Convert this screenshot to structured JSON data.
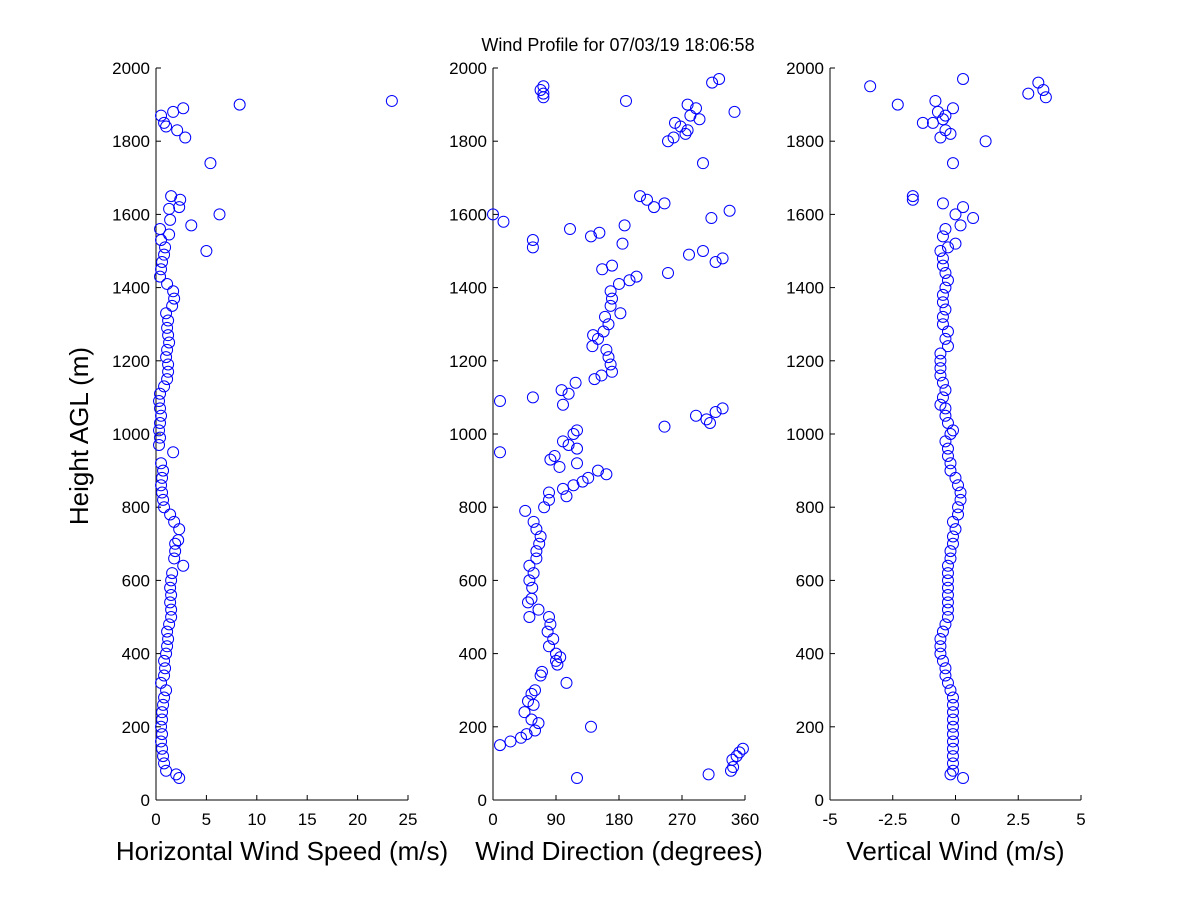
{
  "title": "Wind Profile for  07/03/19 18:06:58",
  "ylabel": "Height AGL (m)",
  "colors": {
    "marker": "#0000ff",
    "axis": "#000000",
    "background": "#ffffff"
  },
  "chart_data": [
    {
      "type": "scatter",
      "xlabel": "Horizontal Wind Speed (m/s)",
      "xlim": [
        0,
        25
      ],
      "ylim": [
        0,
        2000
      ],
      "xticks": [
        0,
        5,
        10,
        15,
        20,
        25
      ],
      "xtick_labels": [
        "0",
        "5",
        "10",
        "15",
        "20",
        "25"
      ],
      "yticks": [
        0,
        200,
        400,
        600,
        800,
        1000,
        1200,
        1400,
        1600,
        1800,
        2000
      ],
      "ytick_labels": [
        "0",
        "200",
        "400",
        "600",
        "800",
        "1000",
        "1200",
        "1400",
        "1600",
        "1800",
        "2000"
      ],
      "points": [
        [
          2.3,
          60
        ],
        [
          2.0,
          70
        ],
        [
          1.0,
          80
        ],
        [
          0.8,
          100
        ],
        [
          0.7,
          120
        ],
        [
          0.6,
          140
        ],
        [
          0.5,
          160
        ],
        [
          0.6,
          180
        ],
        [
          0.5,
          200
        ],
        [
          0.6,
          220
        ],
        [
          0.6,
          240
        ],
        [
          0.7,
          260
        ],
        [
          0.8,
          280
        ],
        [
          1.0,
          300
        ],
        [
          0.5,
          320
        ],
        [
          0.8,
          340
        ],
        [
          0.9,
          360
        ],
        [
          0.8,
          380
        ],
        [
          1.0,
          400
        ],
        [
          1.1,
          420
        ],
        [
          1.2,
          440
        ],
        [
          1.1,
          460
        ],
        [
          1.3,
          480
        ],
        [
          1.5,
          500
        ],
        [
          1.5,
          520
        ],
        [
          1.4,
          540
        ],
        [
          1.5,
          560
        ],
        [
          1.4,
          580
        ],
        [
          1.5,
          600
        ],
        [
          1.6,
          620
        ],
        [
          2.7,
          640
        ],
        [
          1.8,
          660
        ],
        [
          1.9,
          680
        ],
        [
          1.9,
          700
        ],
        [
          2.2,
          710
        ],
        [
          2.3,
          740
        ],
        [
          1.8,
          760
        ],
        [
          1.4,
          780
        ],
        [
          0.8,
          800
        ],
        [
          0.7,
          820
        ],
        [
          0.6,
          840
        ],
        [
          0.5,
          860
        ],
        [
          0.6,
          880
        ],
        [
          0.7,
          900
        ],
        [
          0.5,
          920
        ],
        [
          1.7,
          950
        ],
        [
          0.3,
          970
        ],
        [
          0.4,
          990
        ],
        [
          0.3,
          1010
        ],
        [
          0.4,
          1030
        ],
        [
          0.5,
          1050
        ],
        [
          0.4,
          1070
        ],
        [
          0.3,
          1090
        ],
        [
          0.4,
          1110
        ],
        [
          0.8,
          1130
        ],
        [
          1.1,
          1150
        ],
        [
          1.2,
          1170
        ],
        [
          1.2,
          1190
        ],
        [
          1.0,
          1210
        ],
        [
          1.1,
          1230
        ],
        [
          1.3,
          1250
        ],
        [
          1.2,
          1270
        ],
        [
          1.1,
          1290
        ],
        [
          1.2,
          1310
        ],
        [
          1.0,
          1330
        ],
        [
          1.6,
          1350
        ],
        [
          1.8,
          1370
        ],
        [
          1.7,
          1390
        ],
        [
          1.1,
          1410
        ],
        [
          0.4,
          1430
        ],
        [
          0.5,
          1450
        ],
        [
          0.6,
          1470
        ],
        [
          0.8,
          1490
        ],
        [
          5.0,
          1500
        ],
        [
          0.9,
          1510
        ],
        [
          0.5,
          1530
        ],
        [
          1.3,
          1545
        ],
        [
          0.4,
          1560
        ],
        [
          3.5,
          1570
        ],
        [
          1.4,
          1585
        ],
        [
          6.3,
          1600
        ],
        [
          1.3,
          1615
        ],
        [
          2.3,
          1620
        ],
        [
          2.4,
          1640
        ],
        [
          1.5,
          1650
        ],
        [
          5.4,
          1740
        ],
        [
          2.9,
          1810
        ],
        [
          2.1,
          1830
        ],
        [
          1.0,
          1840
        ],
        [
          0.8,
          1850
        ],
        [
          0.5,
          1870
        ],
        [
          1.7,
          1880
        ],
        [
          2.7,
          1890
        ],
        [
          8.3,
          1900
        ],
        [
          23.4,
          1910
        ]
      ]
    },
    {
      "type": "scatter",
      "xlabel": "Wind Direction (degrees)",
      "xlim": [
        0,
        360
      ],
      "ylim": [
        0,
        2000
      ],
      "xticks": [
        0,
        90,
        180,
        270,
        360
      ],
      "xtick_labels": [
        "0",
        "90",
        "180",
        "270",
        "360"
      ],
      "yticks": [
        0,
        200,
        400,
        600,
        800,
        1000,
        1200,
        1400,
        1600,
        1800,
        2000
      ],
      "ytick_labels": [
        "0",
        "200",
        "400",
        "600",
        "800",
        "1000",
        "1200",
        "1400",
        "1600",
        "1800",
        "2000"
      ],
      "points": [
        [
          120,
          60
        ],
        [
          308,
          70
        ],
        [
          340,
          80
        ],
        [
          343,
          90
        ],
        [
          342,
          110
        ],
        [
          348,
          120
        ],
        [
          352,
          130
        ],
        [
          357,
          140
        ],
        [
          10,
          150
        ],
        [
          25,
          160
        ],
        [
          40,
          170
        ],
        [
          48,
          180
        ],
        [
          60,
          190
        ],
        [
          140,
          200
        ],
        [
          65,
          210
        ],
        [
          55,
          220
        ],
        [
          45,
          240
        ],
        [
          58,
          260
        ],
        [
          50,
          270
        ],
        [
          55,
          290
        ],
        [
          60,
          300
        ],
        [
          105,
          320
        ],
        [
          68,
          340
        ],
        [
          70,
          350
        ],
        [
          92,
          370
        ],
        [
          90,
          380
        ],
        [
          96,
          390
        ],
        [
          90,
          400
        ],
        [
          80,
          420
        ],
        [
          86,
          440
        ],
        [
          78,
          460
        ],
        [
          82,
          480
        ],
        [
          80,
          500
        ],
        [
          52,
          500
        ],
        [
          65,
          520
        ],
        [
          50,
          540
        ],
        [
          55,
          550
        ],
        [
          56,
          580
        ],
        [
          52,
          600
        ],
        [
          58,
          620
        ],
        [
          52,
          640
        ],
        [
          62,
          660
        ],
        [
          62,
          680
        ],
        [
          66,
          700
        ],
        [
          68,
          720
        ],
        [
          62,
          740
        ],
        [
          58,
          760
        ],
        [
          46,
          790
        ],
        [
          73,
          800
        ],
        [
          80,
          820
        ],
        [
          80,
          840
        ],
        [
          100,
          850
        ],
        [
          105,
          830
        ],
        [
          115,
          860
        ],
        [
          128,
          870
        ],
        [
          136,
          880
        ],
        [
          150,
          900
        ],
        [
          162,
          890
        ],
        [
          120,
          920
        ],
        [
          82,
          930
        ],
        [
          88,
          940
        ],
        [
          10,
          950
        ],
        [
          120,
          960
        ],
        [
          95,
          910
        ],
        [
          108,
          970
        ],
        [
          100,
          980
        ],
        [
          115,
          1000
        ],
        [
          120,
          1010
        ],
        [
          245,
          1020
        ],
        [
          310,
          1030
        ],
        [
          305,
          1040
        ],
        [
          290,
          1050
        ],
        [
          318,
          1060
        ],
        [
          328,
          1070
        ],
        [
          10,
          1090
        ],
        [
          100,
          1080
        ],
        [
          57,
          1100
        ],
        [
          108,
          1110
        ],
        [
          98,
          1120
        ],
        [
          118,
          1140
        ],
        [
          145,
          1150
        ],
        [
          155,
          1160
        ],
        [
          170,
          1170
        ],
        [
          168,
          1190
        ],
        [
          165,
          1210
        ],
        [
          162,
          1230
        ],
        [
          142,
          1240
        ],
        [
          150,
          1260
        ],
        [
          143,
          1270
        ],
        [
          158,
          1280
        ],
        [
          165,
          1300
        ],
        [
          160,
          1320
        ],
        [
          182,
          1330
        ],
        [
          168,
          1350
        ],
        [
          170,
          1370
        ],
        [
          168,
          1390
        ],
        [
          180,
          1410
        ],
        [
          195,
          1420
        ],
        [
          205,
          1430
        ],
        [
          250,
          1440
        ],
        [
          156,
          1450
        ],
        [
          170,
          1460
        ],
        [
          328,
          1480
        ],
        [
          280,
          1490
        ],
        [
          300,
          1500
        ],
        [
          318,
          1470
        ],
        [
          57,
          1510
        ],
        [
          57,
          1530
        ],
        [
          140,
          1540
        ],
        [
          152,
          1550
        ],
        [
          110,
          1560
        ],
        [
          185,
          1520
        ],
        [
          188,
          1570
        ],
        [
          15,
          1580
        ],
        [
          312,
          1590
        ],
        [
          0,
          1600
        ],
        [
          338,
          1610
        ],
        [
          230,
          1620
        ],
        [
          245,
          1630
        ],
        [
          220,
          1640
        ],
        [
          210,
          1650
        ],
        [
          300,
          1740
        ],
        [
          250,
          1800
        ],
        [
          258,
          1810
        ],
        [
          275,
          1820
        ],
        [
          268,
          1840
        ],
        [
          278,
          1830
        ],
        [
          260,
          1850
        ],
        [
          295,
          1860
        ],
        [
          282,
          1870
        ],
        [
          345,
          1880
        ],
        [
          290,
          1890
        ],
        [
          278,
          1900
        ],
        [
          190,
          1910
        ],
        [
          72,
          1920
        ],
        [
          72,
          1930
        ],
        [
          68,
          1940
        ],
        [
          72,
          1950
        ],
        [
          313,
          1960
        ],
        [
          323,
          1970
        ]
      ]
    },
    {
      "type": "scatter",
      "xlabel": "Vertical Wind (m/s)",
      "xlim": [
        -5,
        5
      ],
      "ylim": [
        0,
        2000
      ],
      "xticks": [
        -5,
        -2.5,
        0,
        2.5,
        5
      ],
      "xtick_labels": [
        "-5",
        "-2.5",
        "0",
        "2.5",
        "5"
      ],
      "yticks": [
        0,
        200,
        400,
        600,
        800,
        1000,
        1200,
        1400,
        1600,
        1800,
        2000
      ],
      "ytick_labels": [
        "0",
        "200",
        "400",
        "600",
        "800",
        "1000",
        "1200",
        "1400",
        "1600",
        "1800",
        "2000"
      ],
      "points": [
        [
          0.3,
          60
        ],
        [
          -0.2,
          70
        ],
        [
          -0.1,
          80
        ],
        [
          -0.1,
          100
        ],
        [
          -0.1,
          120
        ],
        [
          -0.1,
          140
        ],
        [
          -0.1,
          160
        ],
        [
          -0.1,
          180
        ],
        [
          -0.1,
          200
        ],
        [
          -0.1,
          220
        ],
        [
          -0.1,
          240
        ],
        [
          -0.1,
          260
        ],
        [
          -0.1,
          280
        ],
        [
          -0.2,
          300
        ],
        [
          -0.3,
          320
        ],
        [
          -0.4,
          340
        ],
        [
          -0.4,
          360
        ],
        [
          -0.5,
          380
        ],
        [
          -0.6,
          400
        ],
        [
          -0.6,
          420
        ],
        [
          -0.6,
          440
        ],
        [
          -0.5,
          460
        ],
        [
          -0.4,
          480
        ],
        [
          -0.3,
          500
        ],
        [
          -0.3,
          520
        ],
        [
          -0.3,
          540
        ],
        [
          -0.3,
          560
        ],
        [
          -0.3,
          580
        ],
        [
          -0.3,
          600
        ],
        [
          -0.3,
          620
        ],
        [
          -0.3,
          640
        ],
        [
          -0.2,
          660
        ],
        [
          -0.2,
          680
        ],
        [
          -0.1,
          700
        ],
        [
          -0.1,
          720
        ],
        [
          0.0,
          740
        ],
        [
          -0.1,
          760
        ],
        [
          0.1,
          780
        ],
        [
          0.1,
          800
        ],
        [
          0.2,
          820
        ],
        [
          0.2,
          840
        ],
        [
          0.1,
          860
        ],
        [
          0.0,
          880
        ],
        [
          -0.2,
          900
        ],
        [
          -0.2,
          920
        ],
        [
          -0.3,
          940
        ],
        [
          -0.3,
          960
        ],
        [
          -0.4,
          980
        ],
        [
          -0.2,
          1000
        ],
        [
          -0.1,
          1010
        ],
        [
          -0.3,
          1030
        ],
        [
          -0.4,
          1050
        ],
        [
          -0.4,
          1070
        ],
        [
          -0.6,
          1080
        ],
        [
          -0.5,
          1100
        ],
        [
          -0.4,
          1120
        ],
        [
          -0.5,
          1140
        ],
        [
          -0.6,
          1160
        ],
        [
          -0.6,
          1180
        ],
        [
          -0.6,
          1200
        ],
        [
          -0.6,
          1220
        ],
        [
          -0.3,
          1240
        ],
        [
          -0.4,
          1260
        ],
        [
          -0.3,
          1280
        ],
        [
          -0.5,
          1300
        ],
        [
          -0.5,
          1320
        ],
        [
          -0.4,
          1340
        ],
        [
          -0.5,
          1360
        ],
        [
          -0.5,
          1380
        ],
        [
          -0.4,
          1400
        ],
        [
          -0.3,
          1420
        ],
        [
          -0.4,
          1440
        ],
        [
          -0.5,
          1460
        ],
        [
          -0.5,
          1480
        ],
        [
          -0.6,
          1500
        ],
        [
          -0.3,
          1510
        ],
        [
          0.0,
          1520
        ],
        [
          -0.5,
          1540
        ],
        [
          -0.4,
          1560
        ],
        [
          0.2,
          1570
        ],
        [
          0.7,
          1590
        ],
        [
          0.0,
          1600
        ],
        [
          0.3,
          1620
        ],
        [
          -0.5,
          1630
        ],
        [
          -1.7,
          1640
        ],
        [
          -1.7,
          1650
        ],
        [
          -0.1,
          1740
        ],
        [
          1.2,
          1800
        ],
        [
          -0.6,
          1810
        ],
        [
          -0.2,
          1820
        ],
        [
          -0.4,
          1830
        ],
        [
          -0.9,
          1850
        ],
        [
          -1.3,
          1850
        ],
        [
          -0.5,
          1860
        ],
        [
          -0.4,
          1870
        ],
        [
          -0.7,
          1880
        ],
        [
          -0.1,
          1890
        ],
        [
          -2.3,
          1900
        ],
        [
          -0.8,
          1910
        ],
        [
          2.9,
          1930
        ],
        [
          3.6,
          1920
        ],
        [
          3.5,
          1940
        ],
        [
          -3.4,
          1950
        ],
        [
          3.3,
          1960
        ],
        [
          0.3,
          1970
        ]
      ]
    }
  ]
}
